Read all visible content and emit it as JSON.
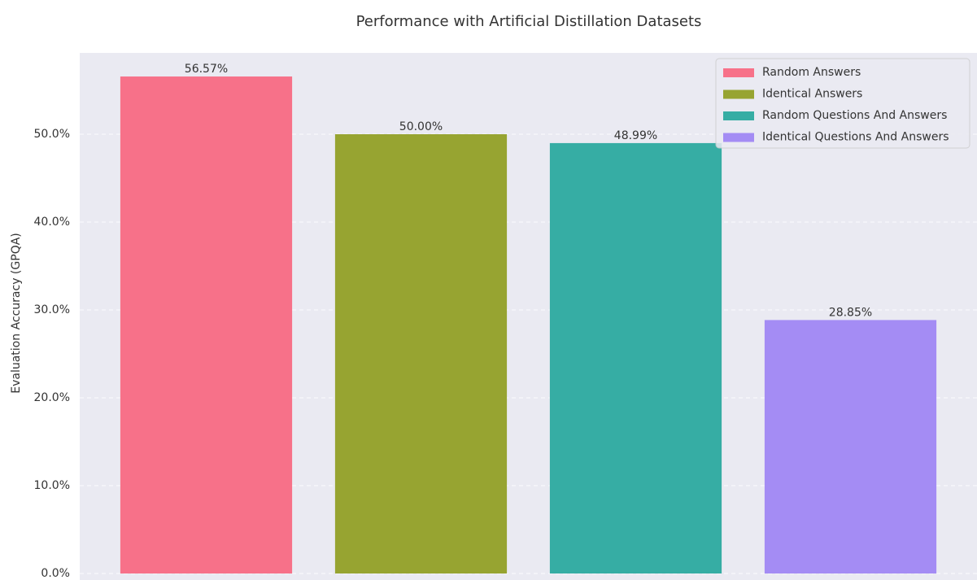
{
  "chart_data": {
    "type": "bar",
    "title": "Performance with Artificial Distillation Datasets",
    "y_label": "Evaluation Accuracy (GPQA)",
    "categories": [
      "Random Answers",
      "Identical Answers",
      "Random Questions And Answers",
      "Identical Questions And Answers"
    ],
    "values": [
      56.57,
      50.0,
      48.99,
      28.85
    ],
    "value_labels": [
      "56.57%",
      "50.00%",
      "48.99%",
      "28.85%"
    ],
    "colors": [
      "#f77189",
      "#97a431",
      "#36ada4",
      "#a48cf4"
    ],
    "ylim": [
      0,
      59.26
    ],
    "yticks": [
      {
        "value": 0,
        "label": "0.0%"
      },
      {
        "value": 10,
        "label": "10.0%"
      },
      {
        "value": 20,
        "label": "20.0%"
      },
      {
        "value": 30,
        "label": "30.0%"
      },
      {
        "value": 40,
        "label": "40.0%"
      },
      {
        "value": 50,
        "label": "50.0%"
      }
    ],
    "grid": true,
    "legend": "upper right"
  }
}
